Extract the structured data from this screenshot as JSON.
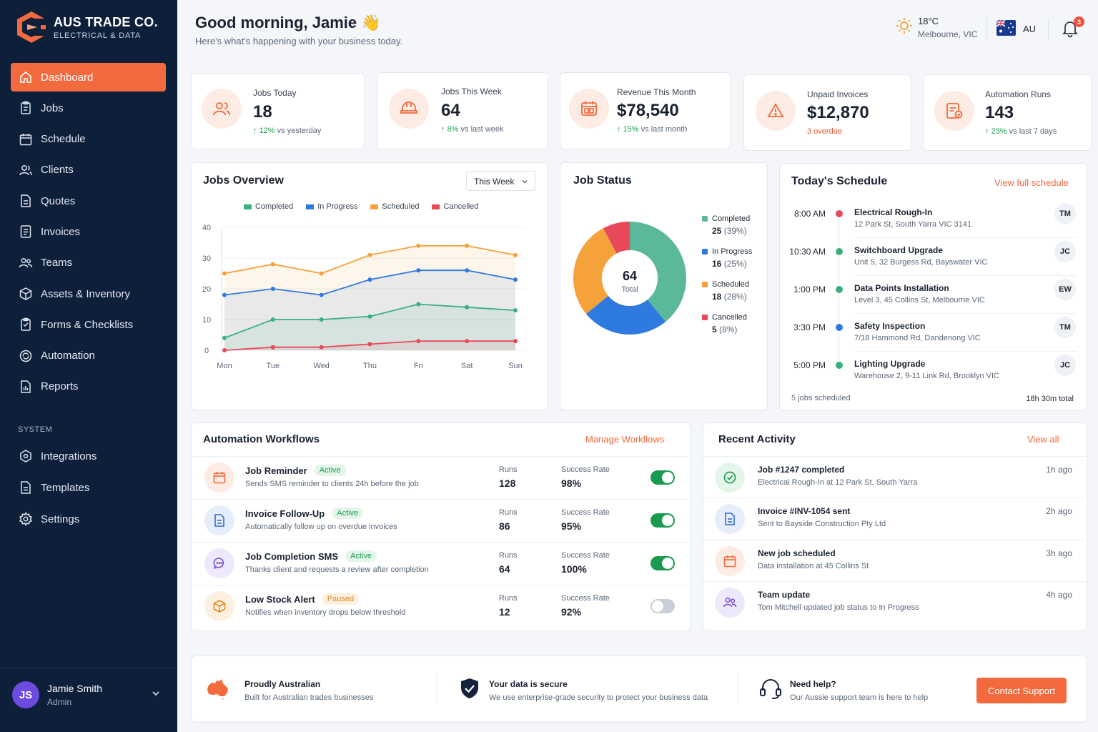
{
  "brand": {
    "name": "AUS TRADE CO.",
    "sub": "ELECTRICAL & DATA"
  },
  "nav": [
    {
      "label": "Dashboard",
      "icon": "home-icon",
      "active": true
    },
    {
      "label": "Jobs",
      "icon": "clipboard-icon"
    },
    {
      "label": "Schedule",
      "icon": "calendar-icon"
    },
    {
      "label": "Clients",
      "icon": "users-icon"
    },
    {
      "label": "Quotes",
      "icon": "document-icon"
    },
    {
      "label": "Invoices",
      "icon": "invoice-icon"
    },
    {
      "label": "Teams",
      "icon": "team-icon"
    },
    {
      "label": "Assets & Inventory",
      "icon": "box-icon"
    },
    {
      "label": "Forms & Checklists",
      "icon": "checklist-icon"
    },
    {
      "label": "Automation",
      "icon": "automation-icon"
    },
    {
      "label": "Reports",
      "icon": "report-icon"
    }
  ],
  "nav_section": "SYSTEM",
  "nav_system": [
    {
      "label": "Integrations",
      "icon": "integrations-icon"
    },
    {
      "label": "Templates",
      "icon": "templates-icon"
    },
    {
      "label": "Settings",
      "icon": "gear-icon"
    }
  ],
  "user": {
    "initials": "JS",
    "name": "Jamie Smith",
    "role": "Admin"
  },
  "header": {
    "greeting": "Good morning, Jamie 👋",
    "subtitle": "Here's what's happening with your business today.",
    "weather_temp": "18°C",
    "weather_location": "Melbourne, VIC",
    "locale": "AU",
    "notification_count": "3"
  },
  "stats": [
    {
      "label": "Jobs Today",
      "value": "18",
      "delta": "12%",
      "delta_text": "vs yesterday",
      "icon": "people-icon"
    },
    {
      "label": "Jobs This Week",
      "value": "64",
      "delta": "8%",
      "delta_text": "vs last week",
      "icon": "hardhat-icon"
    },
    {
      "label": "Revenue This Month",
      "value": "$78,540",
      "delta": "15%",
      "delta_text": "vs last month",
      "icon": "calendar-money-icon"
    },
    {
      "label": "Unpaid Invoices",
      "value": "$12,870",
      "delta": "",
      "delta_text": "3 overdue",
      "icon": "warning-icon"
    },
    {
      "label": "Automation Runs",
      "value": "143",
      "delta": "23%",
      "delta_text": "vs last 7 days",
      "icon": "automation-doc-icon"
    }
  ],
  "jobs_overview": {
    "title": "Jobs Overview",
    "range": "This Week"
  },
  "chart_data": [
    {
      "type": "area",
      "categories": [
        "Mon",
        "Tue",
        "Wed",
        "Thu",
        "Fri",
        "Sat",
        "Sun"
      ],
      "ylim": [
        0,
        40
      ],
      "yticks": [
        0,
        10,
        20,
        30,
        40
      ],
      "grid": true,
      "legend": "top",
      "series": [
        {
          "name": "Completed",
          "color": "#3aaf7e",
          "values": [
            4,
            10,
            10,
            11,
            15,
            14,
            13
          ]
        },
        {
          "name": "In Progress",
          "color": "#2f7ae0",
          "values": [
            18,
            20,
            18,
            23,
            26,
            26,
            23
          ]
        },
        {
          "name": "Scheduled",
          "color": "#f5a23a",
          "values": [
            25,
            28,
            25,
            31,
            34,
            34,
            31
          ]
        },
        {
          "name": "Cancelled",
          "color": "#e84a5a",
          "values": [
            0,
            1,
            1,
            2,
            3,
            3,
            3
          ]
        }
      ]
    },
    {
      "type": "pie",
      "title": "Job Status",
      "total": "64",
      "total_label": "Total",
      "slices": [
        {
          "name": "Completed",
          "value": 25,
          "pct": "(39%)",
          "color": "#5bb99a"
        },
        {
          "name": "In Progress",
          "value": 16,
          "pct": "(25%)",
          "color": "#2f7ae0"
        },
        {
          "name": "Scheduled",
          "value": 18,
          "pct": "(28%)",
          "color": "#f5a23a"
        },
        {
          "name": "Cancelled",
          "value": 5,
          "pct": "(8%)",
          "color": "#e84a5a"
        }
      ]
    }
  ],
  "schedule": {
    "title": "Today's Schedule",
    "link": "View full schedule",
    "items": [
      {
        "time": "8:00 AM",
        "title": "Electrical Rough-In",
        "address": "12 Park St, South Yarra VIC 3141",
        "initials": "TM",
        "color": "#e84a5a"
      },
      {
        "time": "10:30 AM",
        "title": "Switchboard Upgrade",
        "address": "Unit 5, 32 Burgess Rd, Bayswater VIC",
        "initials": "JC",
        "color": "#3aaf7e"
      },
      {
        "time": "1:00 PM",
        "title": "Data Points Installation",
        "address": "Level 3, 45 Collins St, Melbourne VIC",
        "initials": "EW",
        "color": "#3aaf7e"
      },
      {
        "time": "3:30 PM",
        "title": "Safety Inspection",
        "address": "7/18 Hammond Rd, Dandenong VIC",
        "initials": "TM",
        "color": "#2f7ae0"
      },
      {
        "time": "5:00 PM",
        "title": "Lighting Upgrade",
        "address": "Warehouse 2, 9-11 Link Rd, Brooklyn VIC",
        "initials": "JC",
        "color": "#3aaf7e"
      }
    ],
    "footer_left": "5 jobs scheduled",
    "footer_right": "18h 30m total"
  },
  "workflows": {
    "title": "Automation Workflows",
    "link": "Manage Workflows",
    "runs_label": "Runs",
    "rate_label": "Success Rate",
    "items": [
      {
        "name": "Job Reminder",
        "status": "Active",
        "desc": "Sends SMS reminder to clients 24h before the job",
        "runs": "128",
        "rate": "98%",
        "on": true,
        "icon": "calendar-icon",
        "bg": "#fdece4",
        "fg": "#f26a3d"
      },
      {
        "name": "Invoice Follow-Up",
        "status": "Active",
        "desc": "Automatically follow up on overdue invoices",
        "runs": "86",
        "rate": "95%",
        "on": true,
        "icon": "invoice-icon",
        "bg": "#e6eefb",
        "fg": "#2f6fd6"
      },
      {
        "name": "Job Completion SMS",
        "status": "Active",
        "desc": "Thanks client and requests a review after completion",
        "runs": "64",
        "rate": "100%",
        "on": true,
        "icon": "chat-icon",
        "bg": "#eee8fb",
        "fg": "#7b52d9"
      },
      {
        "name": "Low Stock Alert",
        "status": "Paused",
        "desc": "Notifies when inventory drops below threshold",
        "runs": "12",
        "rate": "92%",
        "on": false,
        "icon": "box-icon",
        "bg": "#fdf0e0",
        "fg": "#e08a1e"
      }
    ]
  },
  "activity": {
    "title": "Recent Activity",
    "link": "View all",
    "items": [
      {
        "title": "Job #1247 completed",
        "desc": "Electrical Rough-In at 12 Park St, South Yarra",
        "time": "1h ago",
        "icon": "check-icon",
        "bg": "#e4f6ea",
        "fg": "#1f9d55"
      },
      {
        "title": "Invoice #INV-1054 sent",
        "desc": "Sent to Bayside Construction Pty Ltd",
        "time": "2h ago",
        "icon": "invoice-icon",
        "bg": "#e6eefb",
        "fg": "#2f6fd6"
      },
      {
        "title": "New job scheduled",
        "desc": "Data installation at 45 Collins St",
        "time": "3h ago",
        "icon": "calendar-icon",
        "bg": "#fdece4",
        "fg": "#f26a3d"
      },
      {
        "title": "Team update",
        "desc": "Tom Mitchell updated job status to In Progress",
        "time": "4h ago",
        "icon": "team-icon",
        "bg": "#eee8fb",
        "fg": "#7b52d9"
      }
    ]
  },
  "footer": {
    "items": [
      {
        "title": "Proudly Australian",
        "desc": "Built for Australian trades businesses",
        "icon": "australia-icon"
      },
      {
        "title": "Your data is secure",
        "desc": "We use enterprise-grade security to protect your business data",
        "icon": "shield-icon"
      },
      {
        "title": "Need help?",
        "desc": "Our Aussie support team is here to help",
        "icon": "headset-icon"
      }
    ],
    "button": "Contact Support"
  }
}
